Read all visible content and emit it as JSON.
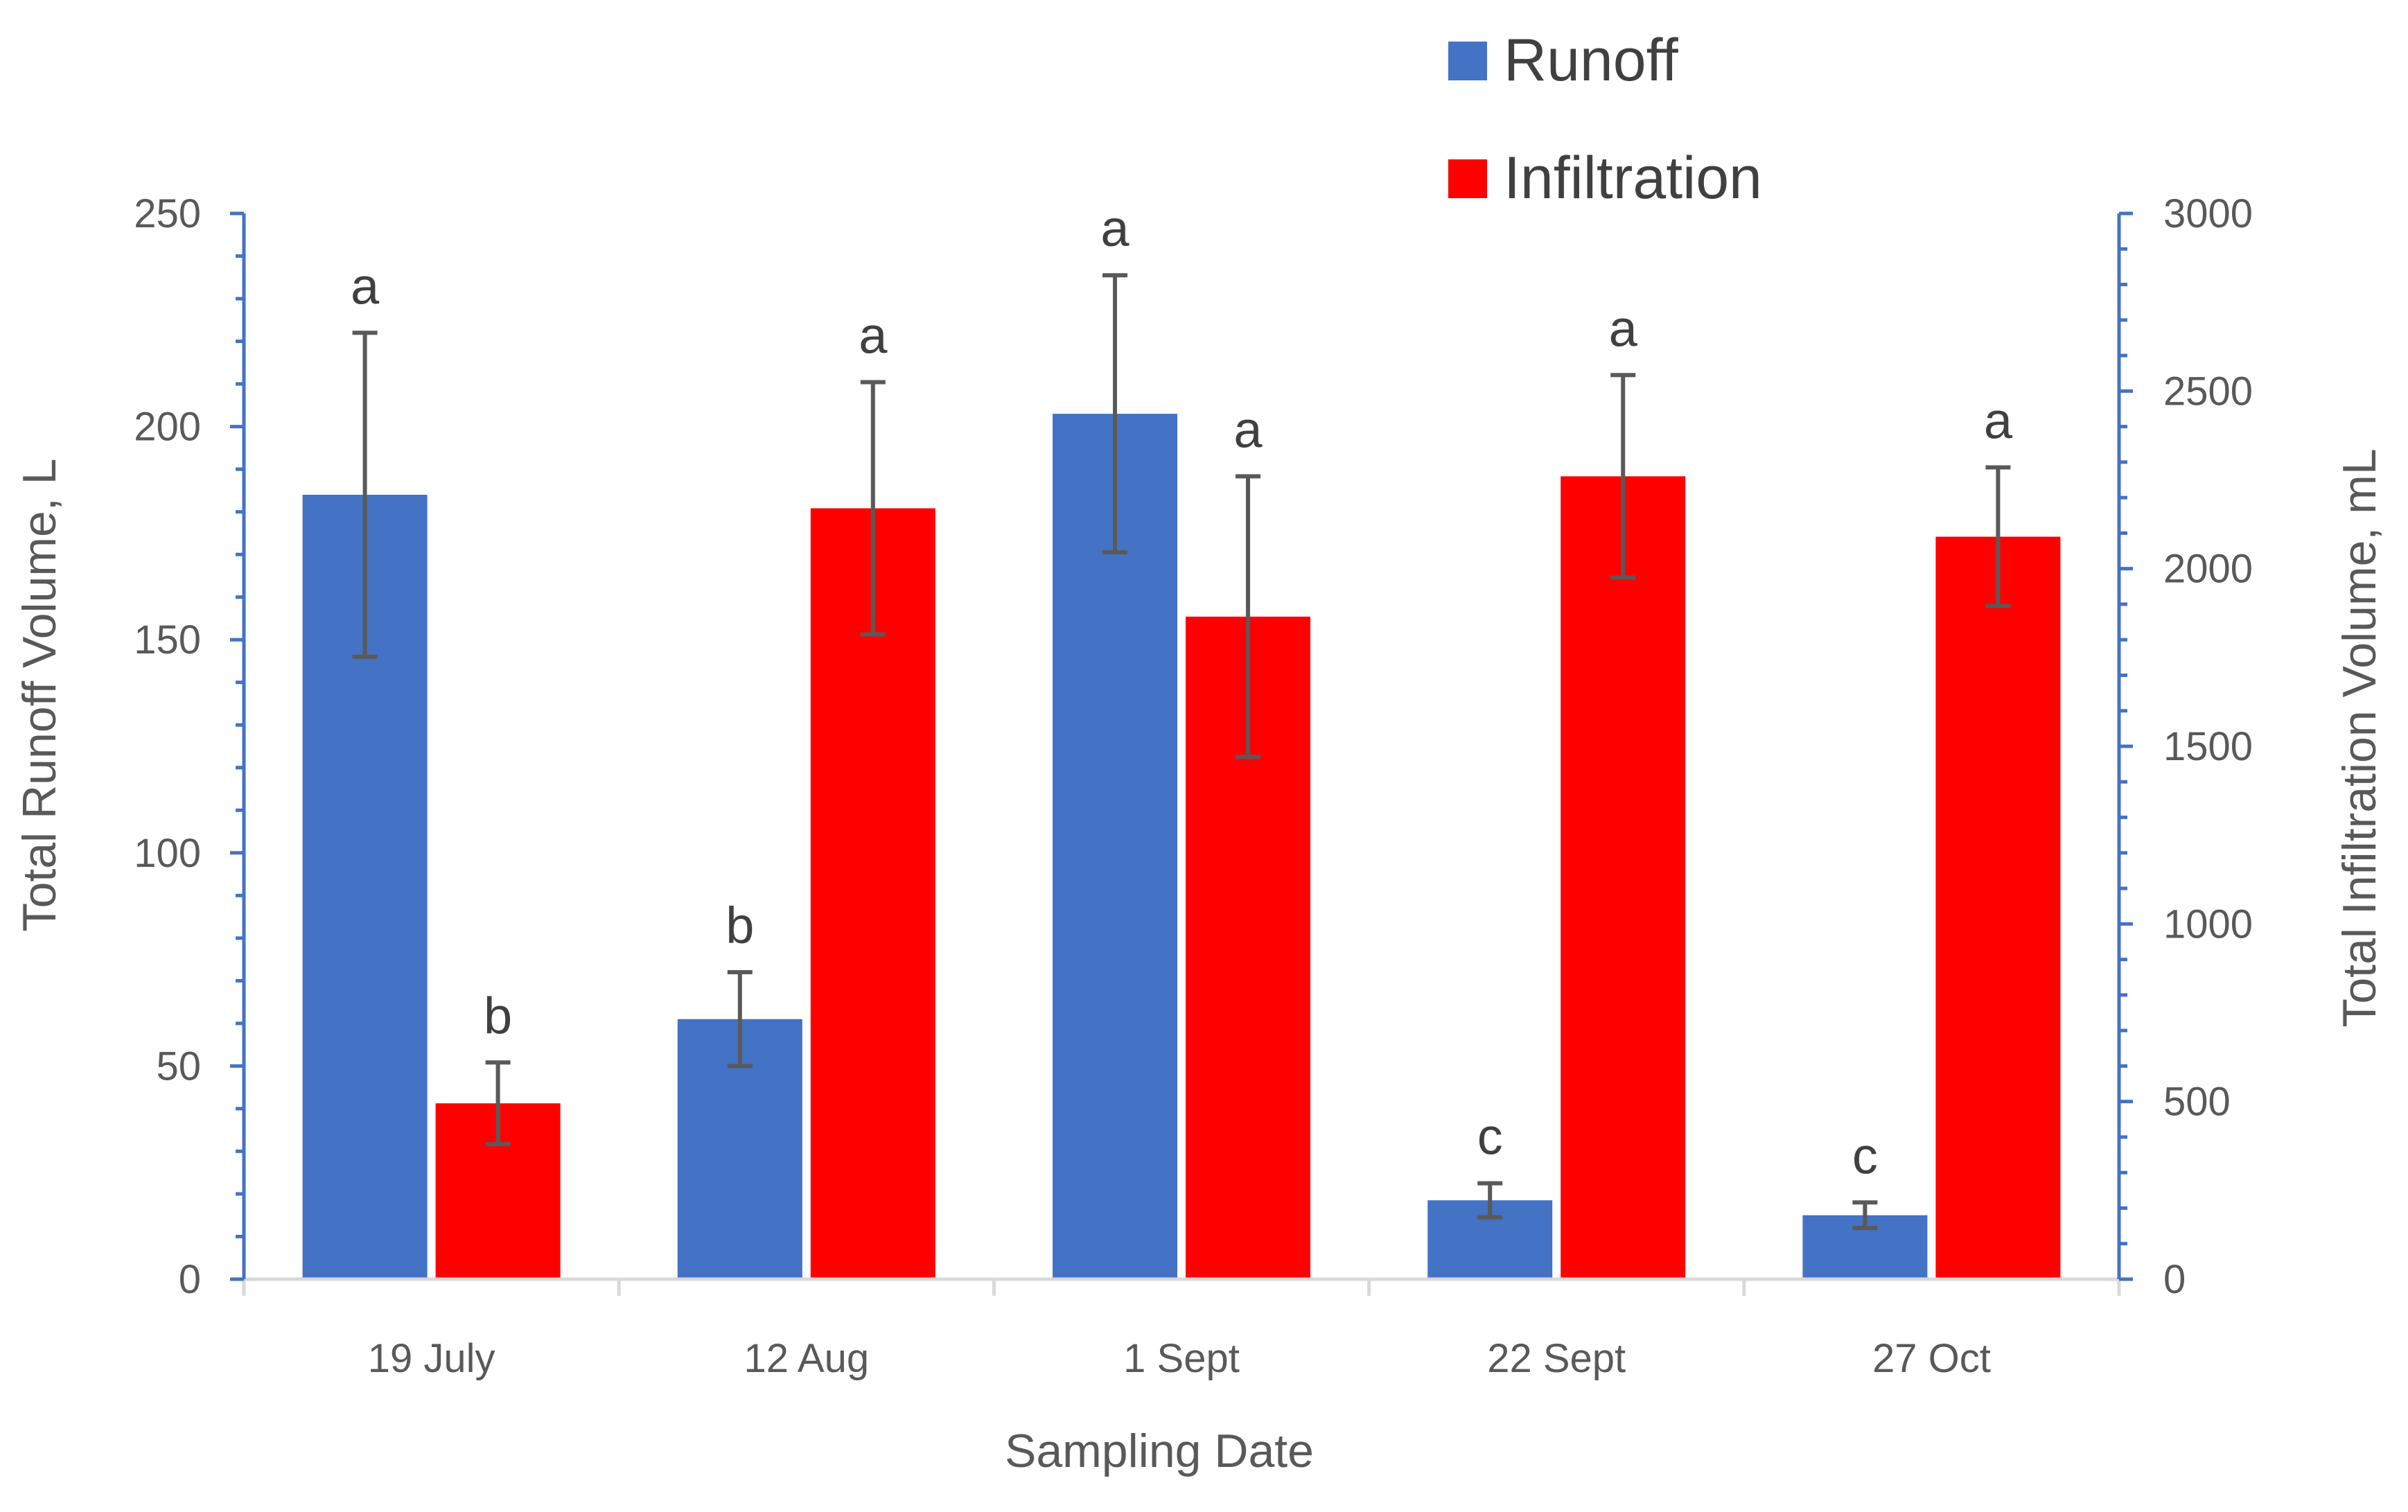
{
  "chart_data": {
    "type": "bar",
    "xlabel": "Sampling Date",
    "categories": [
      "19 July",
      "12 Aug",
      "1 Sept",
      "22 Sept",
      "27 Oct"
    ],
    "y_left": {
      "label": "Total Runoff Volume, L",
      "range": [
        0,
        250
      ],
      "ticks": [
        0,
        50,
        100,
        150,
        200,
        250
      ],
      "tick_labels": [
        "0",
        "50",
        "100",
        "150",
        "200",
        "250"
      ]
    },
    "y_right": {
      "label": "Total Infiltration Volume, mL",
      "range": [
        0,
        3000
      ],
      "ticks": [
        0,
        500,
        1000,
        1500,
        2000,
        2500,
        3000
      ],
      "tick_labels": [
        "0",
        "500",
        "1000",
        "1500",
        "2000",
        "2500",
        "3000"
      ]
    },
    "series": [
      {
        "name": "Runoff",
        "axis": "left",
        "color": "#4472C4",
        "values": [
          184,
          61,
          203,
          18.5,
          15
        ],
        "errors": [
          38,
          11,
          32.5,
          4,
          3
        ],
        "letters": [
          "a",
          "b",
          "a",
          "c",
          "c"
        ]
      },
      {
        "name": "Infiltration",
        "axis": "right",
        "color": "#FF0000",
        "values": [
          495,
          2170,
          1865,
          2260,
          2090
        ],
        "errors": [
          115,
          355,
          395,
          285,
          195
        ],
        "letters": [
          "b",
          "a",
          "a",
          "a",
          "a"
        ]
      }
    ],
    "grid": false,
    "legend_position": "top-right"
  }
}
